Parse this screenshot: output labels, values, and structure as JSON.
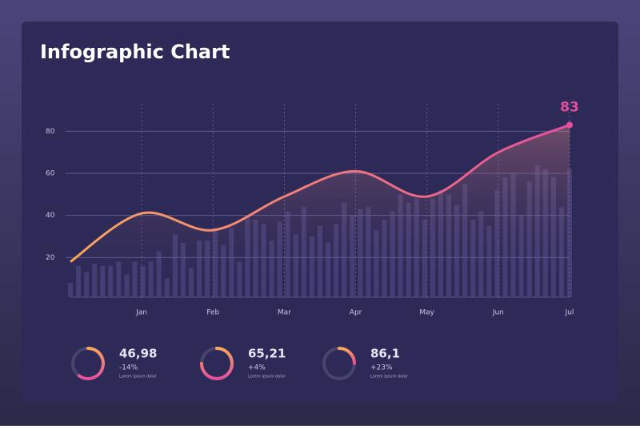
{
  "chart_data": {
    "type": "line",
    "title": "Infographic Chart",
    "categories": [
      null,
      "Jan",
      "Feb",
      "Mar",
      "Apr",
      "May",
      "Jun",
      "Jul"
    ],
    "values": [
      18,
      41,
      33,
      49,
      61,
      49,
      70,
      83
    ],
    "gradient": [
      "#f8a65b",
      "#e64f9c"
    ],
    "ylim": [
      0,
      90
    ],
    "yticks": [
      20,
      40,
      60,
      80
    ],
    "grid": true,
    "bars": [
      8,
      16,
      13,
      17,
      16,
      16,
      18,
      12,
      18,
      16,
      18,
      23,
      10,
      31,
      27,
      15,
      28,
      28,
      34,
      26,
      34,
      18,
      40,
      38,
      36,
      28,
      37,
      42,
      31,
      44,
      30,
      35,
      27,
      36,
      46,
      40,
      43,
      44,
      33,
      38,
      42,
      50,
      46,
      48,
      38,
      48,
      52,
      50,
      45,
      55,
      38,
      42,
      35,
      52,
      58,
      60,
      40,
      56,
      64,
      62,
      58,
      44,
      62
    ],
    "bar_color": "#46437a"
  },
  "widgets": [
    {
      "value": "46,98",
      "change": "-14%",
      "caption": "Lorem ipsum dolor",
      "gauge": 60
    },
    {
      "value": "65,21",
      "change": "+4%",
      "caption": "Lorem ipsum dolor",
      "gauge": 75
    },
    {
      "value": "86,1",
      "change": "+23%",
      "caption": "Lorem ipsum dolor",
      "gauge": 25
    }
  ]
}
